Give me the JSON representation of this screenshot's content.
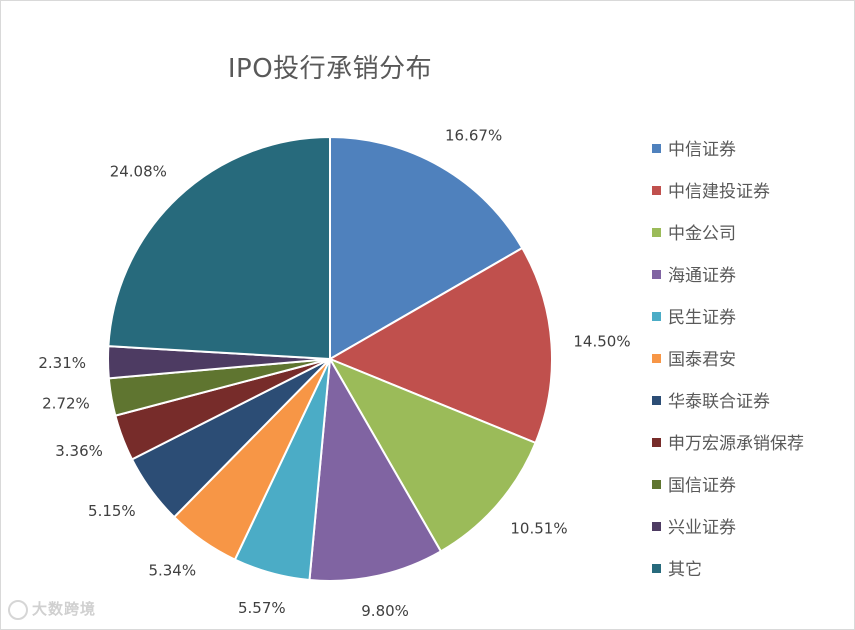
{
  "chart_data": {
    "type": "pie",
    "title": "IPO投行承销分布",
    "legend_position": "right",
    "slices": [
      {
        "name": "中信证券",
        "value": 16.67,
        "label": "16.67%",
        "color": "#4f81bd"
      },
      {
        "name": "中信建投证券",
        "value": 14.5,
        "label": "14.50%",
        "color": "#c0504d"
      },
      {
        "name": "中金公司",
        "value": 10.51,
        "label": "10.51%",
        "color": "#9bbb59"
      },
      {
        "name": "海通证券",
        "value": 9.8,
        "label": "9.80%",
        "color": "#8064a2"
      },
      {
        "name": "民生证券",
        "value": 5.57,
        "label": "5.57%",
        "color": "#4bacc6"
      },
      {
        "name": "国泰君安",
        "value": 5.34,
        "label": "5.34%",
        "color": "#f79646"
      },
      {
        "name": "华泰联合证券",
        "value": 5.15,
        "label": "5.15%",
        "color": "#2c4d75"
      },
      {
        "name": "申万宏源承销保荐",
        "value": 3.36,
        "label": "3.36%",
        "color": "#772c2a"
      },
      {
        "name": "国信证券",
        "value": 2.72,
        "label": "2.72%",
        "color": "#5f7530"
      },
      {
        "name": "兴业证券",
        "value": 2.31,
        "label": "2.31%",
        "color": "#4d3b62"
      },
      {
        "name": "其它",
        "value": 24.08,
        "label": "24.08%",
        "color": "#276a7c"
      }
    ]
  },
  "watermark": {
    "text": "大数跨境"
  }
}
